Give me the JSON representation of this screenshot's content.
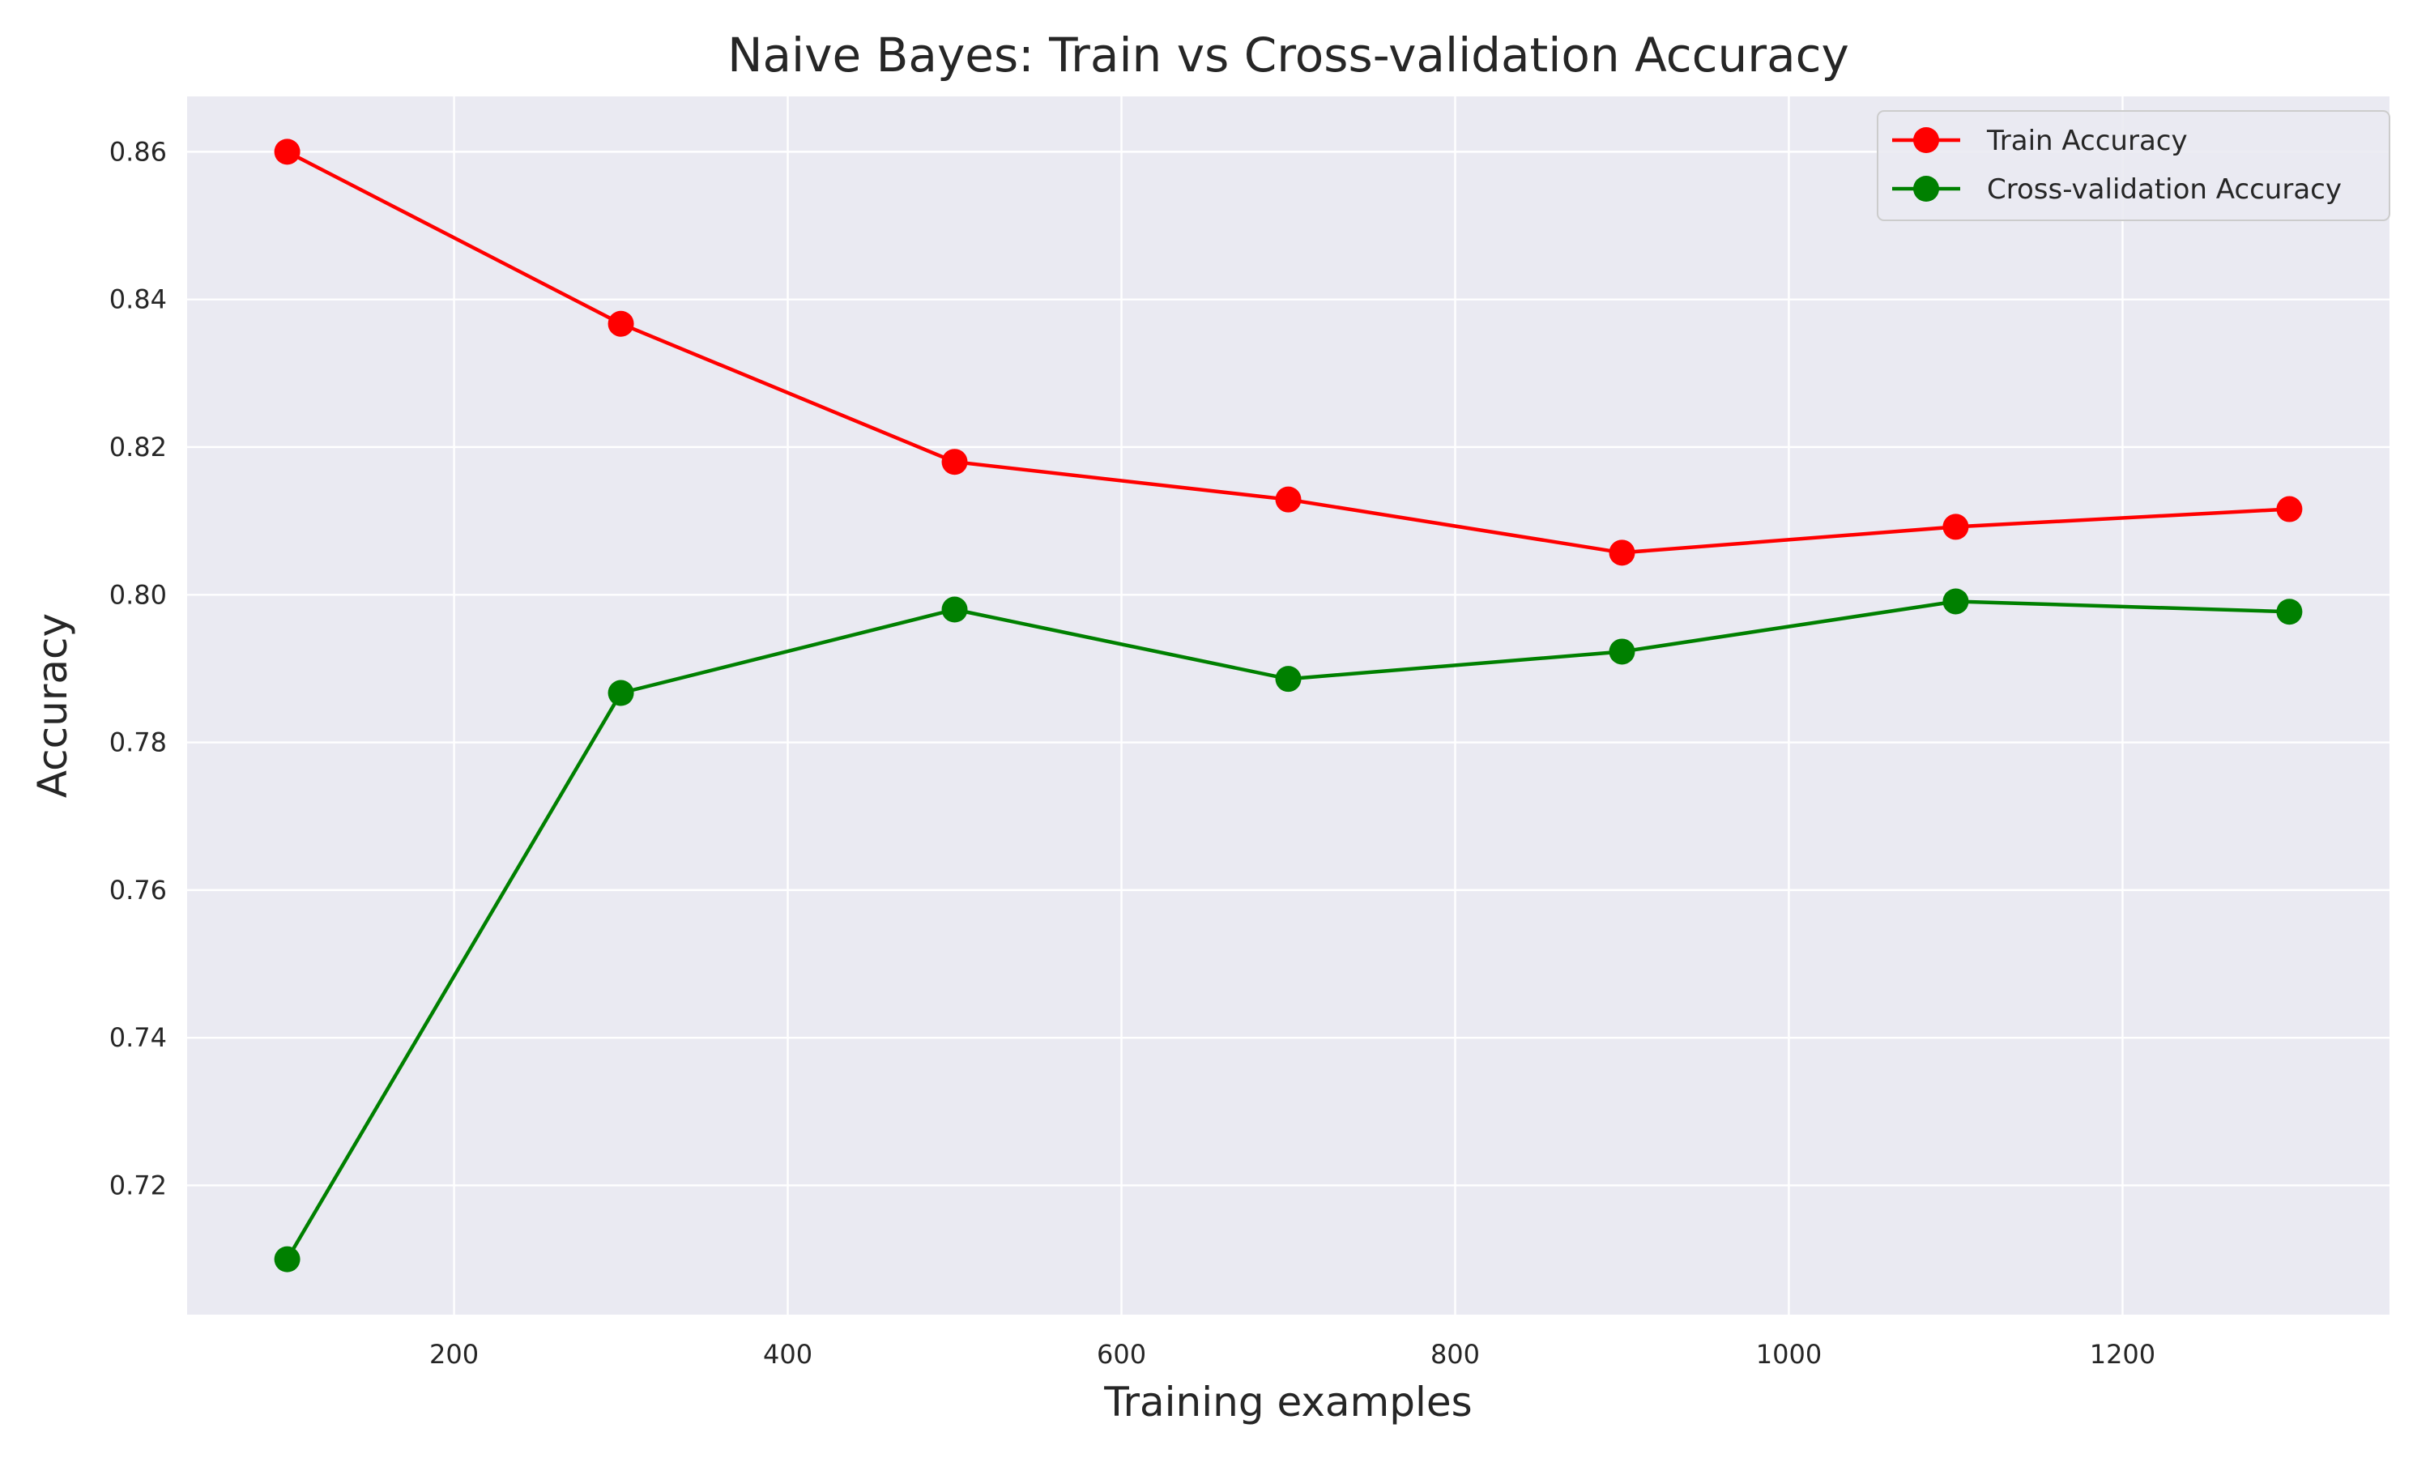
{
  "chart_data": {
    "type": "line",
    "title": "Naive Bayes: Train vs Cross-validation Accuracy",
    "xlabel": "Training examples",
    "ylabel": "Accuracy",
    "x": [
      100,
      300,
      500,
      700,
      900,
      1100,
      1300
    ],
    "series": [
      {
        "name": "Train Accuracy",
        "color": "#ff0000",
        "values": [
          0.86,
          0.8367,
          0.818,
          0.8129,
          0.8057,
          0.8092,
          0.8116
        ]
      },
      {
        "name": "Cross-validation Accuracy",
        "color": "#008000",
        "values": [
          0.71,
          0.7867,
          0.798,
          0.7886,
          0.7923,
          0.7991,
          0.7977
        ]
      }
    ],
    "xlim": [
      40,
      1360
    ],
    "ylim": [
      0.7025,
      0.8675
    ],
    "xticks": [
      200,
      400,
      600,
      800,
      1000,
      1200
    ],
    "xtick_labels": [
      "200",
      "400",
      "600",
      "800",
      "1000",
      "1200"
    ],
    "yticks": [
      0.72,
      0.74,
      0.76,
      0.78,
      0.8,
      0.82,
      0.84,
      0.86
    ],
    "ytick_labels": [
      "0.72",
      "0.74",
      "0.76",
      "0.78",
      "0.80",
      "0.82",
      "0.84",
      "0.86"
    ],
    "grid": true,
    "legend_position": "top-right",
    "background_color": "#eaeaf2",
    "grid_color": "#ffffff"
  }
}
